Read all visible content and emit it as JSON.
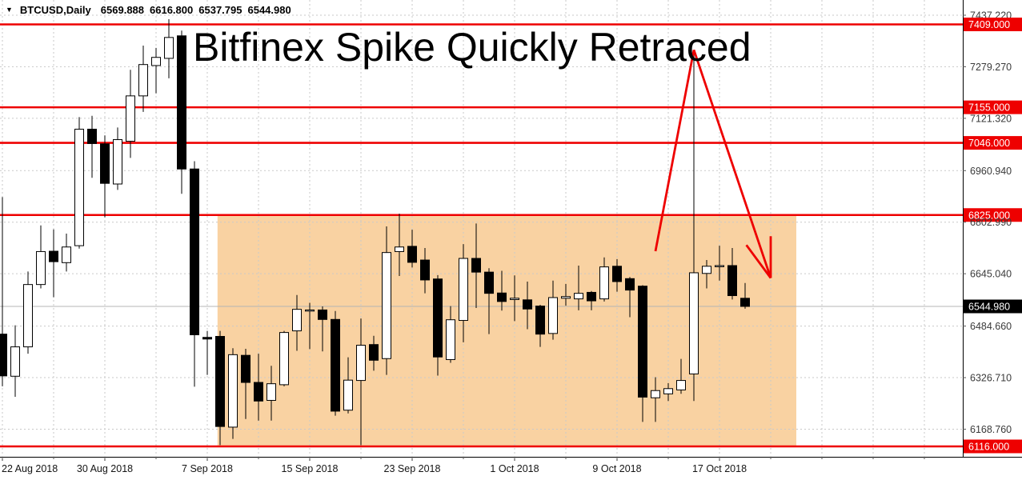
{
  "info_bar": {
    "symbol": "BTCUSD,Daily",
    "open": "6569.888",
    "high": "6616.800",
    "low": "6537.795",
    "close": "6544.980"
  },
  "annotation": {
    "title": "Bitfinex Spike Quickly Retraced"
  },
  "colors": {
    "red": "#ee0000",
    "zone": "#f9d2a2",
    "grid": "#c9c9c9",
    "current_line": "#b4b4b4",
    "bull_body": "#ffffff",
    "bear_body": "#000000",
    "candle_outline": "#000000",
    "axis_text": "#3a3a3a",
    "date_text": "#141414",
    "badge_text": "#ffffff",
    "current_badge_bg": "#000000",
    "border": "#000000"
  },
  "chart_data": {
    "type": "candlestick",
    "symbol": "BTCUSD",
    "timeframe": "Daily",
    "title": "Bitfinex Spike Quickly Retraced",
    "ylim": [
      6085,
      7484
    ],
    "grid_on": true,
    "grid_prices": [
      7437.22,
      7279.27,
      7121.32,
      6960.94,
      6802.99,
      6645.04,
      6484.66,
      6326.71,
      6168.76
    ],
    "level_lines": [
      7409.0,
      7155.0,
      7046.0,
      6825.0,
      6116.0
    ],
    "current_price": 6544.98,
    "axis_labels": [
      {
        "text": "7437.220",
        "price": 7437.22,
        "style": "grid"
      },
      {
        "text": "7409.000",
        "price": 7409.0,
        "style": "red"
      },
      {
        "text": "7279.270",
        "price": 7279.27,
        "style": "grid"
      },
      {
        "text": "7155.000",
        "price": 7155.0,
        "style": "red"
      },
      {
        "text": "7121.320",
        "price": 7121.32,
        "style": "grid"
      },
      {
        "text": "7046.000",
        "price": 7046.0,
        "style": "red"
      },
      {
        "text": "6960.940",
        "price": 6960.94,
        "style": "grid"
      },
      {
        "text": "6825.000",
        "price": 6825.0,
        "style": "red"
      },
      {
        "text": "6802.990",
        "price": 6802.99,
        "style": "grid"
      },
      {
        "text": "6645.040",
        "price": 6645.04,
        "style": "grid"
      },
      {
        "text": "6544.980",
        "price": 6544.98,
        "style": "current"
      },
      {
        "text": "6484.660",
        "price": 6484.66,
        "style": "grid"
      },
      {
        "text": "6326.710",
        "price": 6326.71,
        "style": "grid"
      },
      {
        "text": "6168.760",
        "price": 6168.76,
        "style": "grid"
      },
      {
        "text": "6116.000",
        "price": 6116.0,
        "style": "red"
      }
    ],
    "x_labels": [
      {
        "text": "22 Aug 2018",
        "day": 0
      },
      {
        "text": "30 Aug 2018",
        "day": 8
      },
      {
        "text": "7 Sep 2018",
        "day": 16
      },
      {
        "text": "15 Sep 2018",
        "day": 24
      },
      {
        "text": "23 Sep 2018",
        "day": 32
      },
      {
        "text": "1 Oct 2018",
        "day": 40
      },
      {
        "text": "9 Oct 2018",
        "day": 48
      },
      {
        "text": "17 Oct 2018",
        "day": 56
      }
    ],
    "zone": {
      "start_day": 16.8,
      "end_day": 62.0,
      "top_price": 6825.0,
      "bottom_price": 6116.0
    },
    "arrow": {
      "lines": [
        [
          [
            51.0,
            6714
          ],
          [
            54.0,
            7331
          ]
        ],
        [
          [
            54.0,
            7331
          ],
          [
            60.0,
            6632
          ]
        ],
        [
          [
            60.0,
            6760
          ],
          [
            60.0,
            6632
          ]
        ],
        [
          [
            58.1,
            6733
          ],
          [
            60.0,
            6632
          ]
        ]
      ]
    },
    "candles": [
      [
        "22 Aug 2018",
        6460,
        6880,
        6300,
        6332
      ],
      [
        "23 Aug 2018",
        6331,
        6487,
        6268,
        6421
      ],
      [
        "24 Aug 2018",
        6421,
        6652,
        6400,
        6612
      ],
      [
        "25 Aug 2018",
        6612,
        6793,
        6600,
        6713
      ],
      [
        "26 Aug 2018",
        6714,
        6781,
        6573,
        6682
      ],
      [
        "27 Aug 2018",
        6679,
        6768,
        6652,
        6727
      ],
      [
        "28 Aug 2018",
        6731,
        7125,
        6722,
        7088
      ],
      [
        "29 Aug 2018",
        7088,
        7129,
        6939,
        7044
      ],
      [
        "30 Aug 2018",
        7043,
        7069,
        6818,
        6922
      ],
      [
        "31 Aug 2018",
        6920,
        7093,
        6902,
        7056
      ],
      [
        "1 Sep 2018",
        7051,
        7270,
        7000,
        7190
      ],
      [
        "2 Sep 2018",
        7190,
        7344,
        7141,
        7286
      ],
      [
        "3 Sep 2018",
        7283,
        7337,
        7198,
        7308
      ],
      [
        "4 Sep 2018",
        7305,
        7425,
        7244,
        7369
      ],
      [
        "5 Sep 2018",
        7374,
        7390,
        6890,
        6966
      ],
      [
        "6 Sep 2018",
        6966,
        6990,
        6299,
        6458
      ],
      [
        "7 Sep 2018",
        6450,
        6470,
        6335,
        6445
      ],
      [
        "8 Sep 2018",
        6453,
        6470,
        6120,
        6177
      ],
      [
        "9 Sep 2018",
        6175,
        6417,
        6139,
        6397
      ],
      [
        "10 Sep 2018",
        6395,
        6415,
        6200,
        6312
      ],
      [
        "11 Sep 2018",
        6312,
        6400,
        6195,
        6255
      ],
      [
        "12 Sep 2018",
        6257,
        6363,
        6195,
        6308
      ],
      [
        "13 Sep 2018",
        6305,
        6470,
        6300,
        6465
      ],
      [
        "14 Sep 2018",
        6470,
        6580,
        6409,
        6536
      ],
      [
        "15 Sep 2018",
        6534,
        6556,
        6414,
        6534
      ],
      [
        "16 Sep 2018",
        6534,
        6545,
        6407,
        6505
      ],
      [
        "17 Sep 2018",
        6505,
        6531,
        6210,
        6224
      ],
      [
        "18 Sep 2018",
        6227,
        6389,
        6217,
        6319
      ],
      [
        "19 Sep 2018",
        6318,
        6508,
        6120,
        6426
      ],
      [
        "20 Sep 2018",
        6428,
        6455,
        6348,
        6380
      ],
      [
        "21 Sep 2018",
        6385,
        6790,
        6335,
        6710
      ],
      [
        "22 Sep 2018",
        6713,
        6829,
        6638,
        6727
      ],
      [
        "23 Sep 2018",
        6729,
        6780,
        6664,
        6680
      ],
      [
        "24 Sep 2018",
        6687,
        6724,
        6585,
        6626
      ],
      [
        "25 Sep 2018",
        6629,
        6641,
        6333,
        6390
      ],
      [
        "26 Sep 2018",
        6382,
        6546,
        6372,
        6504
      ],
      [
        "27 Sep 2018",
        6502,
        6736,
        6435,
        6692
      ],
      [
        "28 Sep 2018",
        6692,
        6799,
        6540,
        6650
      ],
      [
        "29 Sep 2018",
        6650,
        6662,
        6460,
        6585
      ],
      [
        "30 Sep 2018",
        6586,
        6654,
        6532,
        6560
      ],
      [
        "1 Oct 2018",
        6566,
        6640,
        6500,
        6570
      ],
      [
        "2 Oct 2018",
        6565,
        6621,
        6475,
        6537
      ],
      [
        "3 Oct 2018",
        6546,
        6550,
        6421,
        6460
      ],
      [
        "4 Oct 2018",
        6462,
        6624,
        6443,
        6572
      ],
      [
        "5 Oct 2018",
        6570,
        6614,
        6547,
        6575
      ],
      [
        "6 Oct 2018",
        6568,
        6670,
        6533,
        6585
      ],
      [
        "7 Oct 2018",
        6588,
        6592,
        6533,
        6562
      ],
      [
        "8 Oct 2018",
        6568,
        6695,
        6560,
        6666
      ],
      [
        "9 Oct 2018",
        6668,
        6690,
        6590,
        6621
      ],
      [
        "10 Oct 2018",
        6630,
        6635,
        6512,
        6595
      ],
      [
        "11 Oct 2018",
        6607,
        6610,
        6191,
        6267
      ],
      [
        "12 Oct 2018",
        6265,
        6328,
        6191,
        6287
      ],
      [
        "13 Oct 2018",
        6277,
        6310,
        6255,
        6293
      ],
      [
        "14 Oct 2018",
        6289,
        6384,
        6277,
        6318
      ],
      [
        "15 Oct 2018",
        6338,
        7330,
        6255,
        6648
      ],
      [
        "16 Oct 2018",
        6646,
        6687,
        6600,
        6668
      ],
      [
        "17 Oct 2018",
        6668,
        6731,
        6624,
        6670
      ],
      [
        "18 Oct 2018",
        6670,
        6724,
        6566,
        6578
      ],
      [
        "19 Oct 2018",
        6569.888,
        6616.8,
        6537.795,
        6544.98
      ]
    ]
  }
}
